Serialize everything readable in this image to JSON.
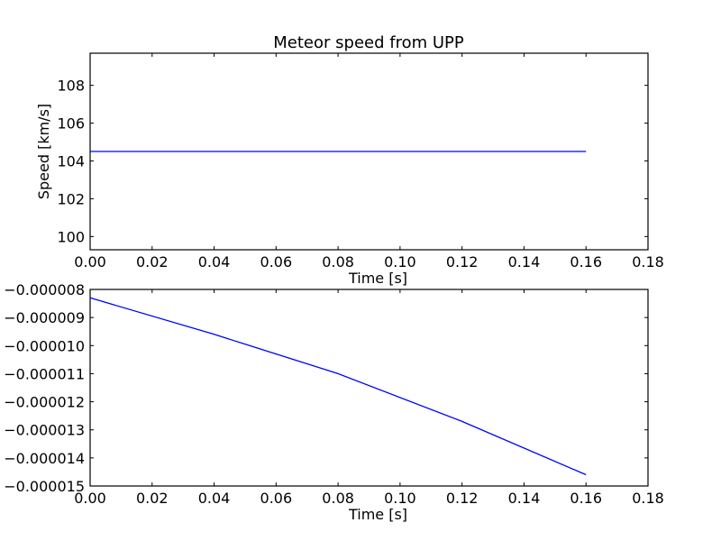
{
  "figure": {
    "title": "Meteor speed from  UPP",
    "background": "#ffffff",
    "line_color": "#0000ff",
    "axes_color": "#000000"
  },
  "chart_data": [
    {
      "type": "line",
      "title": "Meteor speed from  UPP",
      "xlabel": "Time [s]",
      "ylabel": "Speed [km/s]",
      "xlim": [
        0.0,
        0.18
      ],
      "ylim": [
        99.3,
        109.7
      ],
      "x_ticks": [
        0.0,
        0.02,
        0.04,
        0.06,
        0.08,
        0.1,
        0.12,
        0.14,
        0.16,
        0.18
      ],
      "x_tick_labels": [
        "0.00",
        "0.02",
        "0.04",
        "0.06",
        "0.08",
        "0.10",
        "0.12",
        "0.14",
        "0.16",
        "0.18"
      ],
      "y_ticks": [
        100,
        102,
        104,
        106,
        108
      ],
      "y_tick_labels": [
        "100",
        "102",
        "104",
        "106",
        "108"
      ],
      "grid": false,
      "series": [
        {
          "color": "#0000ff",
          "x": [
            0.0,
            0.16
          ],
          "y": [
            104.5,
            104.5
          ]
        }
      ]
    },
    {
      "type": "line",
      "title": "",
      "xlabel": "Time [s]",
      "ylabel": "",
      "xlim": [
        0.0,
        0.18
      ],
      "ylim": [
        -1.5e-05,
        -8e-06
      ],
      "x_ticks": [
        0.0,
        0.02,
        0.04,
        0.06,
        0.08,
        0.1,
        0.12,
        0.14,
        0.16,
        0.18
      ],
      "x_tick_labels": [
        "0.00",
        "0.02",
        "0.04",
        "0.06",
        "0.08",
        "0.10",
        "0.12",
        "0.14",
        "0.16",
        "0.18"
      ],
      "y_ticks": [
        -8e-06,
        -9e-06,
        -1e-05,
        -1.1e-05,
        -1.2e-05,
        -1.3e-05,
        -1.4e-05,
        -1.5e-05
      ],
      "y_tick_labels": [
        "−0.000008",
        "−0.000009",
        "−0.000010",
        "−0.000011",
        "−0.000012",
        "−0.000013",
        "−0.000014",
        "−0.000015"
      ],
      "grid": false,
      "series": [
        {
          "color": "#0000ff",
          "x": [
            0.0,
            0.04,
            0.08,
            0.12,
            0.16
          ],
          "y": [
            -8.3e-06,
            -9.6e-06,
            -1.1e-05,
            -1.27e-05,
            -1.46e-05
          ]
        }
      ]
    }
  ]
}
